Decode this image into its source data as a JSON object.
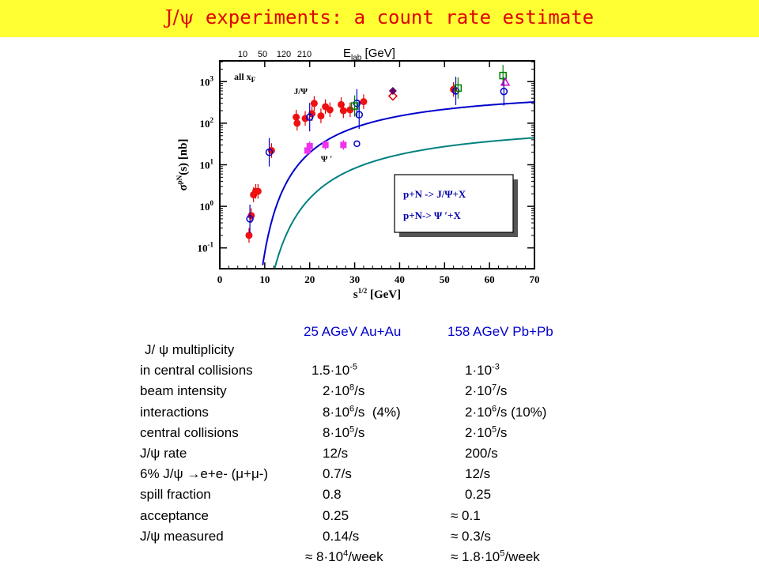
{
  "title": {
    "prefix": "J/ψ",
    "text": "experiments: a count rate estimate"
  },
  "chart_data": {
    "type": "scatter",
    "top_axis_label": "E",
    "top_axis_sub": "lab",
    "top_axis_unit": "[GeV]",
    "top_ticks": [
      "10",
      "50",
      "120",
      "210"
    ],
    "xlabel": "s",
    "xlabel_sup": "1/2",
    "xlabel_unit": "[GeV]",
    "ylabel": "σ",
    "ylabel_sup": "pN",
    "ylabel_rest": "(s)  [nb]",
    "xlim": [
      0,
      70
    ],
    "ylim_log10": [
      -1.5,
      3.5
    ],
    "x_ticks": [
      "0",
      "10",
      "20",
      "30",
      "40",
      "50",
      "60",
      "70"
    ],
    "y_ticks": [
      {
        "base": "10",
        "exp": "3",
        "v": 3
      },
      {
        "base": "10",
        "exp": "2",
        "v": 2
      },
      {
        "base": "10",
        "exp": "1",
        "v": 1
      },
      {
        "base": "10",
        "exp": "0",
        "v": 0
      },
      {
        "base": "10",
        "exp": "-1",
        "v": -1
      }
    ],
    "annotation_all": "all x",
    "annotation_all_sub": "F",
    "label_jpsi": "J/Ψ",
    "label_psiprime": "Ψ ′",
    "legend": [
      "p+N -> J/Ψ+X",
      "p+N->  Ψ ′+X"
    ],
    "jpsi_red": [
      [
        6.5,
        0.2
      ],
      [
        7,
        0.6
      ],
      [
        7.5,
        1.9
      ],
      [
        8,
        2.3
      ],
      [
        8.5,
        2.3
      ],
      [
        11.5,
        22
      ],
      [
        17,
        140
      ],
      [
        17.2,
        100
      ],
      [
        19,
        130
      ],
      [
        20.5,
        170
      ],
      [
        21,
        300
      ],
      [
        22.5,
        150
      ],
      [
        23.5,
        250
      ],
      [
        24.5,
        210
      ],
      [
        27,
        280
      ],
      [
        27.5,
        200
      ],
      [
        29,
        210
      ],
      [
        32,
        330
      ],
      [
        52,
        650
      ]
    ],
    "jpsi_blue": [
      [
        6.7,
        0.5
      ],
      [
        11,
        20
      ],
      [
        20,
        140
      ],
      [
        30.5,
        300
      ],
      [
        31,
        160
      ],
      [
        52.5,
        600
      ],
      [
        63.2,
        580
      ]
    ],
    "jpsi_green": [
      [
        30,
        260
      ],
      [
        53,
        700
      ],
      [
        63,
        1400
      ]
    ],
    "psip_pink": [
      [
        19.5,
        22
      ],
      [
        20,
        28
      ],
      [
        23.5,
        30
      ],
      [
        27.5,
        30
      ]
    ],
    "psip_blue": [
      [
        30.5,
        32
      ]
    ]
  },
  "table": {
    "headers": [
      "25 AGeV Au+Au",
      "158 AGeV Pb+Pb"
    ],
    "rows": [
      {
        "label": "J/ ψ multiplicity",
        "a": "",
        "b": ""
      },
      {
        "label": "in central collisions",
        "a": "1.5·10",
        "a_sup": "-5",
        "b": "1·10",
        "b_sup": "-3"
      },
      {
        "label": "beam intensity",
        "a": "2·10",
        "a_sup": "8",
        "a_post": "/s",
        "b": "2·10",
        "b_sup": "7",
        "b_post": "/s"
      },
      {
        "label": "interactions",
        "a": "8·10",
        "a_sup": "6",
        "a_post": "/s  (4%)",
        "b": "2·10",
        "b_sup": "6",
        "b_post": "/s (10%)"
      },
      {
        "label": "central collisions",
        "a": "8·10",
        "a_sup": "5",
        "a_post": "/s",
        "b": "2·10",
        "b_sup": "5",
        "b_post": "/s"
      },
      {
        "label": "J/ψ rate",
        "a": "12/s",
        "b": "200/s"
      },
      {
        "label": "6% J/ψ →e+e- (μ+μ-)",
        "a": "0.7/s",
        "b": "12/s"
      },
      {
        "label": "spill fraction",
        "a": "0.8",
        "b": "0.25"
      },
      {
        "label": "acceptance",
        "a": "0.25",
        "b": "≈ 0.1"
      },
      {
        "label": "J/ψ measured",
        "a": "0.14/s",
        "b": "≈ 0.3/s"
      },
      {
        "label": "",
        "a": "≈ 8·10",
        "a_sup": "4",
        "a_post": "/week",
        "b": "≈ 1.8·10",
        "b_sup": "5",
        "b_post": "/week"
      }
    ]
  }
}
